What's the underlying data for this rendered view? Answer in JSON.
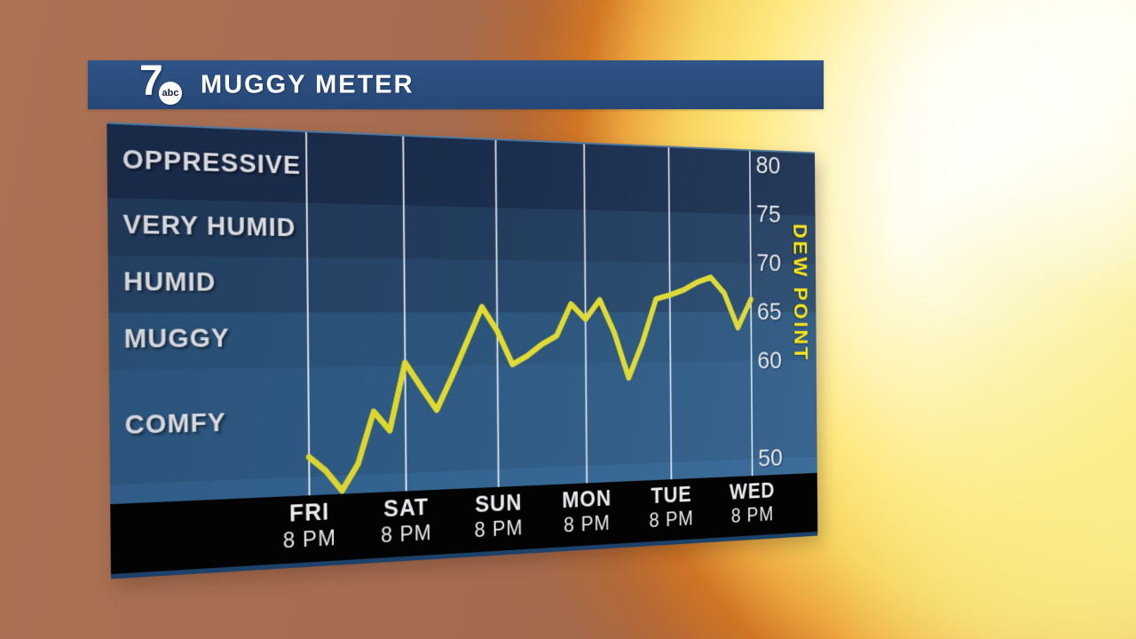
{
  "header": {
    "title": "MUGGY METER",
    "logo": {
      "channel": "7",
      "network": "abc"
    }
  },
  "chart_data": {
    "type": "line",
    "title": "MUGGY METER",
    "ylabel": "DEW POINT",
    "y_ticks": [
      80,
      75,
      70,
      65,
      60,
      50
    ],
    "ylim": [
      48.3,
      81.4
    ],
    "grid": "vertical lines at each day label",
    "legend": "none",
    "bands": [
      {
        "label": "OPPRESSIVE",
        "from": 75,
        "to": 81.4,
        "color": "#1b2e4d"
      },
      {
        "label": "VERY HUMID",
        "from": 70,
        "to": 75,
        "color": "#233d5e"
      },
      {
        "label": "HUMID",
        "from": 65,
        "to": 70,
        "color": "#27476a"
      },
      {
        "label": "MUGGY",
        "from": 60,
        "to": 65,
        "color": "#2c567d"
      },
      {
        "label": "COMFY",
        "from": 50,
        "to": 60,
        "color": "#2f5c86"
      },
      {
        "label": "",
        "from": 48.3,
        "to": 50,
        "color": "#346592"
      }
    ],
    "x_categories": [
      {
        "day": "FRI",
        "time": "8 PM"
      },
      {
        "day": "SAT",
        "time": "8 PM"
      },
      {
        "day": "SUN",
        "time": "8 PM"
      },
      {
        "day": "MON",
        "time": "8 PM"
      },
      {
        "day": "TUE",
        "time": "8 PM"
      },
      {
        "day": "WED",
        "time": "8 PM"
      }
    ],
    "series": [
      {
        "name": "dew-point",
        "color": "#e5de2f",
        "start": "FRI 8 PM",
        "step_hours": 4,
        "values": [
          51.8,
          50.5,
          48.6,
          51,
          55.8,
          54,
          60.3,
          58,
          55.8,
          58.9,
          62.2,
          65.5,
          63.2,
          60,
          60.8,
          61.9,
          62.7,
          65.8,
          64.3,
          66.2,
          63,
          58.5,
          62,
          66.3,
          66.7,
          67.2,
          68,
          68.5,
          66.9,
          63.4,
          66.3
        ]
      }
    ]
  },
  "colors": {
    "title_bar_blue": "#2a4d7e",
    "axis_band_black": "#030303",
    "line_yellow": "#e5de2f",
    "ylabel_yellow": "#f6e41c",
    "tick_text": "#e9eaee",
    "gridline": "#ffffff"
  }
}
